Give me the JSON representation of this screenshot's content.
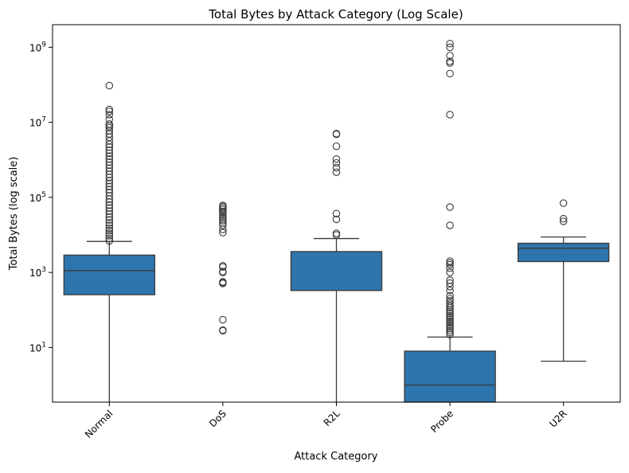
{
  "chart_data": {
    "type": "box",
    "title": "Total Bytes by Attack Category (Log Scale)",
    "xlabel": "Attack Category",
    "ylabel": "Total Bytes (log scale)",
    "yscale": "log",
    "ylim": [
      0.35,
      4000000000
    ],
    "yticks": [
      {
        "value": 10,
        "base": "10",
        "exp": "1"
      },
      {
        "value": 1000,
        "base": "10",
        "exp": "3"
      },
      {
        "value": 100000,
        "base": "10",
        "exp": "5"
      },
      {
        "value": 10000000,
        "base": "10",
        "exp": "7"
      },
      {
        "value": 1000000000,
        "base": "10",
        "exp": "9"
      }
    ],
    "box_color": "#2e75ad",
    "line_color": "#3a3a3a",
    "categories": [
      "Normal",
      "DoS",
      "R2L",
      "Probe",
      "U2R"
    ],
    "boxes": [
      {
        "category": "Normal",
        "q1": 255,
        "median": 1120,
        "q3": 2900,
        "whisker_low": 0.35,
        "whisker_high": 6700,
        "outliers": [
          6900,
          8000,
          9500,
          11000,
          13000,
          15000,
          18000,
          21000,
          25000,
          30000,
          36000,
          43000,
          52000,
          62000,
          75000,
          90000,
          110000,
          135000,
          160000,
          195000,
          235000,
          280000,
          340000,
          410000,
          500000,
          600000,
          720000,
          870000,
          1050000,
          1250000,
          1500000,
          1800000,
          2200000,
          2600000,
          3200000,
          4000000,
          4900000,
          6000000,
          7200000,
          8000000,
          9000000,
          12000000,
          16000000,
          19500000,
          22000000,
          95000000
        ]
      },
      {
        "category": "DoS",
        "q1": null,
        "median": null,
        "q3": null,
        "whisker_low": null,
        "whisker_high": null,
        "outliers": [
          28,
          29,
          55,
          510,
          540,
          560,
          1000,
          1050,
          1400,
          1500,
          11500,
          14000,
          18000,
          21000,
          24000,
          27000,
          30000,
          34000,
          38000,
          42000,
          47000,
          52000,
          57000,
          61000
        ]
      },
      {
        "category": "R2L",
        "q1": 330,
        "median": null,
        "q3": 3600,
        "whisker_low": 0.35,
        "whisker_high": 8000,
        "outliers": [
          10000,
          11000,
          26000,
          37000,
          470000,
          620000,
          830000,
          1050000,
          2300000,
          4800000,
          5000000
        ]
      },
      {
        "category": "Probe",
        "q1": 0.35,
        "median": 1,
        "q3": 8,
        "whisker_low": 0.35,
        "whisker_high": 19,
        "outliers": [
          22,
          25,
          28,
          32,
          36,
          40,
          45,
          50,
          56,
          63,
          70,
          80,
          90,
          100,
          115,
          130,
          150,
          175,
          200,
          240,
          330,
          420,
          520,
          620,
          1000,
          1300,
          1600,
          1800,
          2000,
          18000,
          55000,
          16000000,
          200000000,
          380000000,
          420000000,
          600000000,
          1000000000,
          1250000000
        ]
      },
      {
        "category": "U2R",
        "q1": 1950,
        "median": 4400,
        "q3": 6000,
        "whisker_low": 4.3,
        "whisker_high": 8800,
        "outliers": [
          23000,
          27000,
          70000
        ]
      }
    ]
  }
}
